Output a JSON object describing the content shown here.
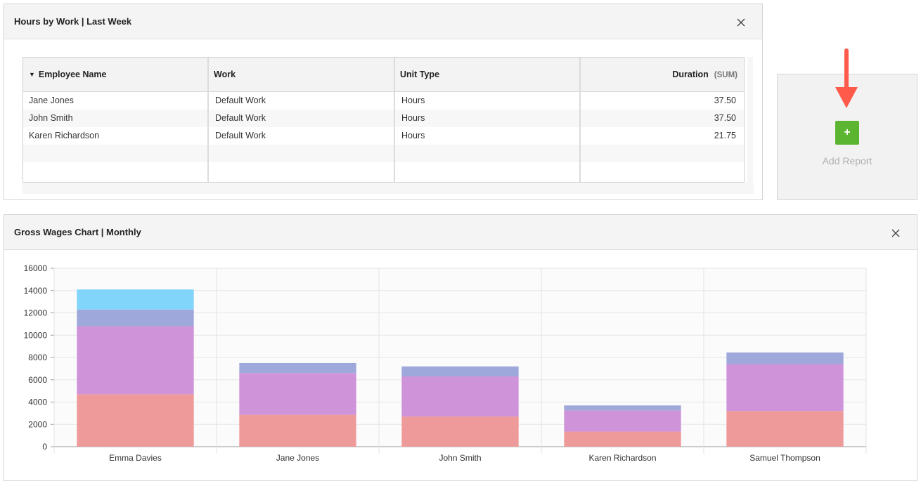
{
  "table_panel": {
    "title": "Hours by Work | Last Week",
    "columns": [
      "Employee Name",
      "Work",
      "Unit Type",
      "Duration"
    ],
    "sum_tag": "(SUM)",
    "rows": [
      {
        "name": "Jane Jones",
        "work": "Default Work",
        "unit": "Hours",
        "duration": "37.50"
      },
      {
        "name": "John Smith",
        "work": "Default Work",
        "unit": "Hours",
        "duration": "37.50"
      },
      {
        "name": "Karen Richardson",
        "work": "Default Work",
        "unit": "Hours",
        "duration": "21.75"
      }
    ]
  },
  "add_report": {
    "button_label": "+",
    "label": "Add Report",
    "accent": "#5cb531",
    "arrow_color": "#ff5a4a"
  },
  "chart_panel": {
    "title": "Gross Wages Chart | Monthly"
  },
  "chart_data": {
    "type": "bar",
    "stacked": true,
    "categories": [
      "Emma Davies",
      "Jane Jones",
      "John Smith",
      "Karen Richardson",
      "Samuel Thompson"
    ],
    "series": [
      {
        "color": "#ef9a9a",
        "values": [
          4700,
          2850,
          2700,
          1350,
          3200
        ]
      },
      {
        "color": "#ce93d8",
        "values": [
          6100,
          3750,
          3600,
          1900,
          4200
        ]
      },
      {
        "color": "#9fa8da",
        "values": [
          1500,
          900,
          900,
          450,
          1050
        ]
      },
      {
        "color": "#81d4fa",
        "values": [
          1800,
          0,
          0,
          0,
          0
        ]
      }
    ],
    "ylim": [
      0,
      16000
    ],
    "yticks": [
      "0",
      "2000",
      "4000",
      "6000",
      "8000",
      "10000",
      "12000",
      "14000",
      "16000"
    ],
    "grid": true,
    "legend": "none"
  }
}
